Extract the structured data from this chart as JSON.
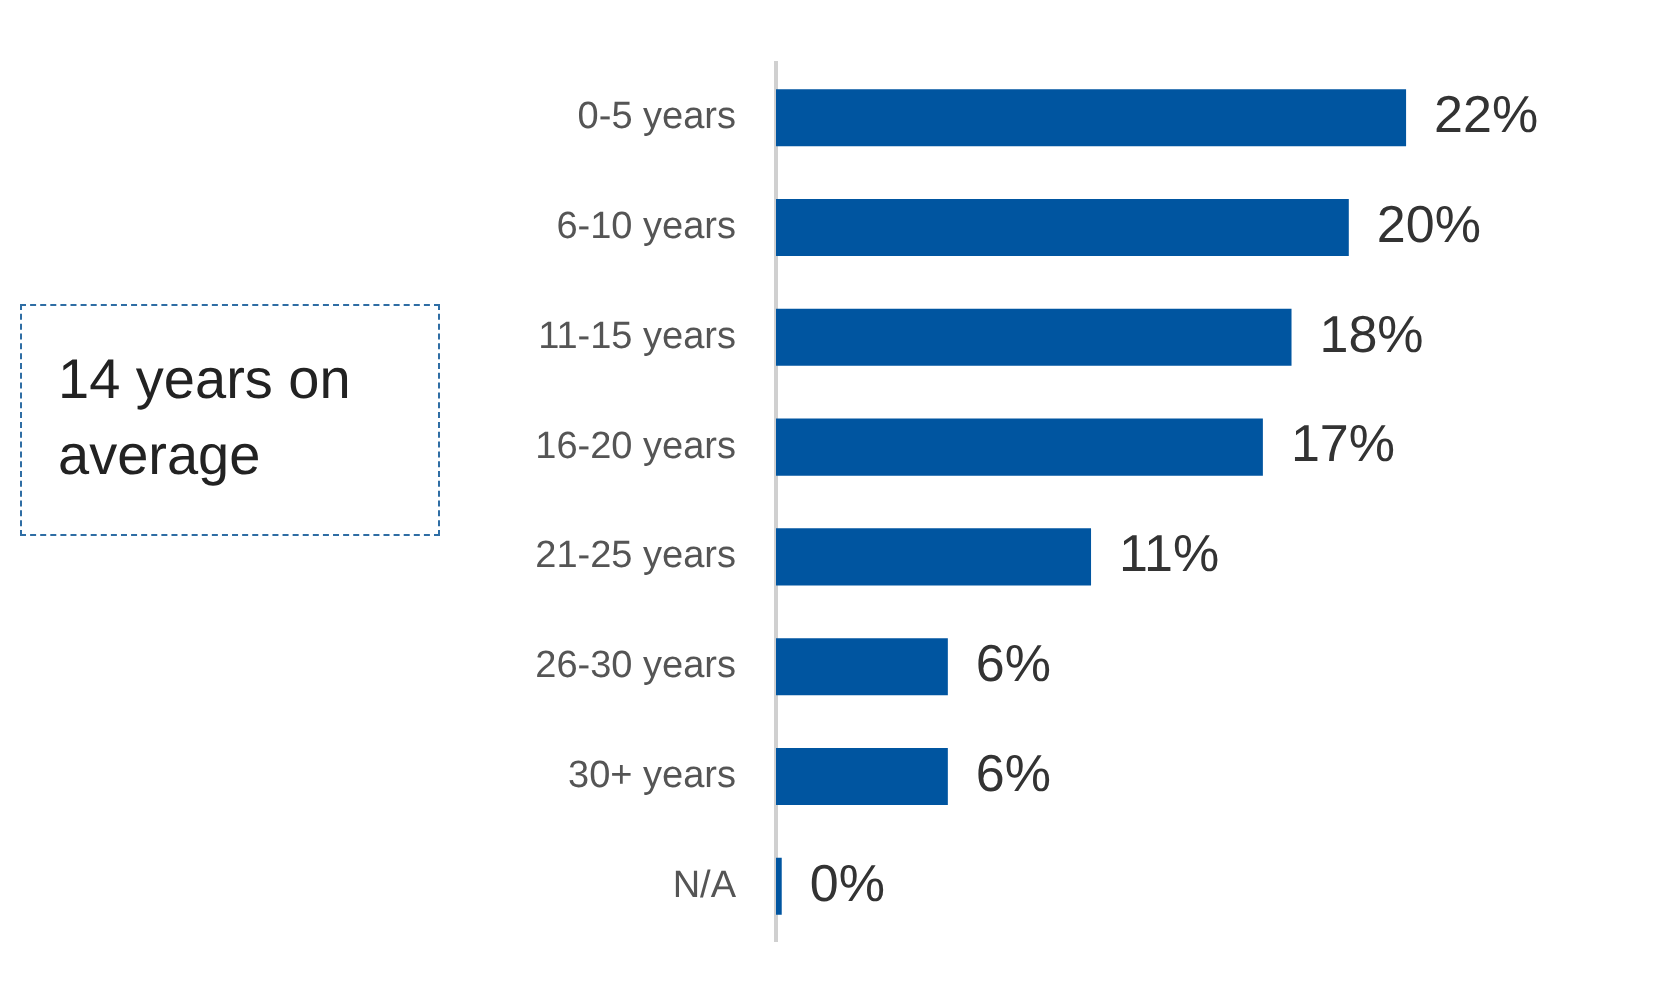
{
  "chart_data": {
    "type": "bar",
    "orientation": "horizontal",
    "categories": [
      "0-5 years",
      "6-10 years",
      "11-15 years",
      "16-20 years",
      "21-25 years",
      "26-30 years",
      "30+ years",
      "N/A"
    ],
    "values": [
      22,
      20,
      18,
      17,
      11,
      6,
      6,
      0.2
    ],
    "value_labels": [
      "22%",
      "20%",
      "18%",
      "17%",
      "11%",
      "6%",
      "6%",
      "0%"
    ],
    "color": "#0055a0",
    "tick_labels": "y",
    "grid": false,
    "legend": false,
    "annotations": [
      "14 years on average"
    ]
  }
}
